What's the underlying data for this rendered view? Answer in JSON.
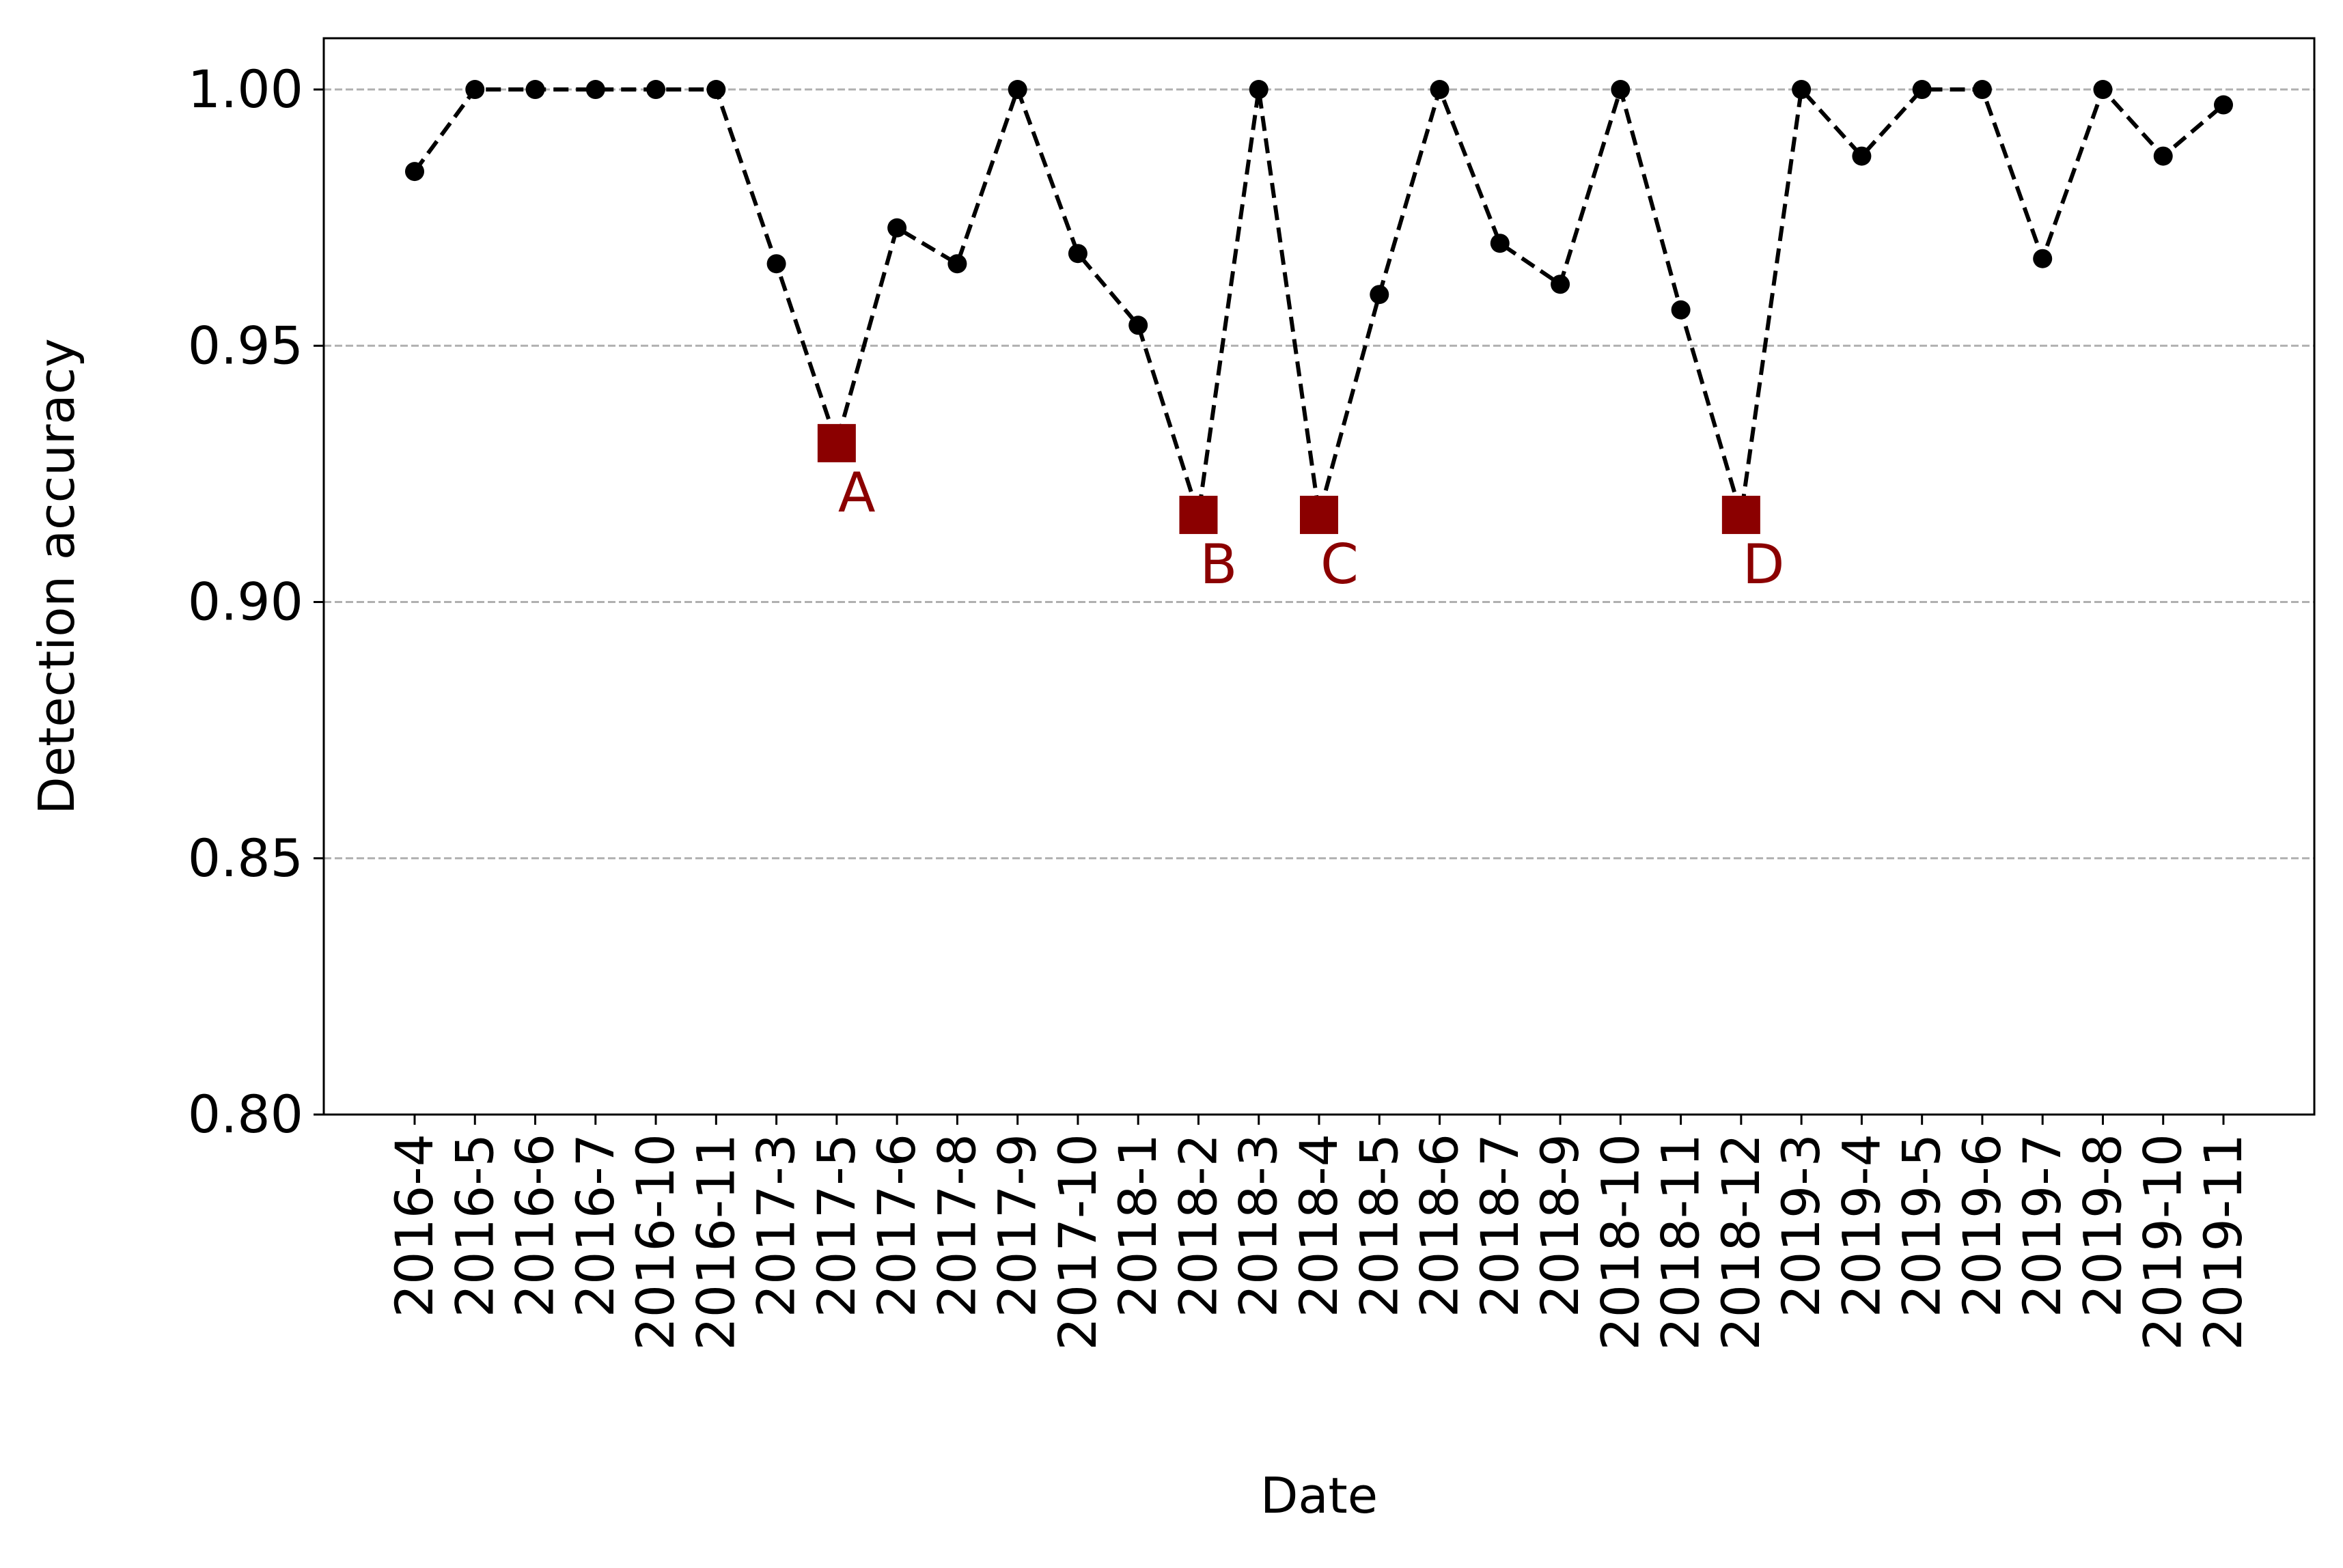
{
  "chart_data": {
    "type": "line",
    "xlabel": "Date",
    "ylabel": "Detection accuracy",
    "ylim": [
      0.8,
      1.01
    ],
    "yticks": [
      0.8,
      0.85,
      0.9,
      0.95,
      1.0
    ],
    "ytick_labels": [
      "0.80",
      "0.85",
      "0.90",
      "0.95",
      "1.00"
    ],
    "grid": "horizontal, dashed, light gray",
    "categories": [
      "2016-4",
      "2016-5",
      "2016-6",
      "2016-7",
      "2016-10",
      "2016-11",
      "2017-3",
      "2017-5",
      "2017-6",
      "2017-8",
      "2017-9",
      "2017-10",
      "2018-1",
      "2018-2",
      "2018-3",
      "2018-4",
      "2018-5",
      "2018-6",
      "2018-7",
      "2018-9",
      "2018-10",
      "2018-11",
      "2018-12",
      "2019-3",
      "2019-4",
      "2019-5",
      "2019-6",
      "2019-7",
      "2019-8",
      "2019-10",
      "2019-11"
    ],
    "series": [
      {
        "style": "black dashed line with black dot markers",
        "values": [
          0.984,
          1.0,
          1.0,
          1.0,
          1.0,
          1.0,
          0.966,
          0.931,
          0.973,
          0.966,
          1.0,
          0.968,
          0.954,
          0.917,
          1.0,
          0.917,
          0.96,
          1.0,
          0.97,
          0.962,
          1.0,
          0.957,
          0.917,
          1.0,
          0.987,
          1.0,
          1.0,
          0.967,
          1.0,
          0.987,
          0.997
        ]
      }
    ],
    "highlights": [
      {
        "label": "A",
        "category": "2017-5",
        "value": 0.931
      },
      {
        "label": "B",
        "category": "2018-2",
        "value": 0.917
      },
      {
        "label": "C",
        "category": "2018-4",
        "value": 0.917
      },
      {
        "label": "D",
        "category": "2018-12",
        "value": 0.917
      }
    ],
    "colors": {
      "line": "#000000",
      "marker": "#000000",
      "highlight": "#8b0000",
      "grid": "#b0b0b0",
      "axis": "#000000"
    }
  }
}
